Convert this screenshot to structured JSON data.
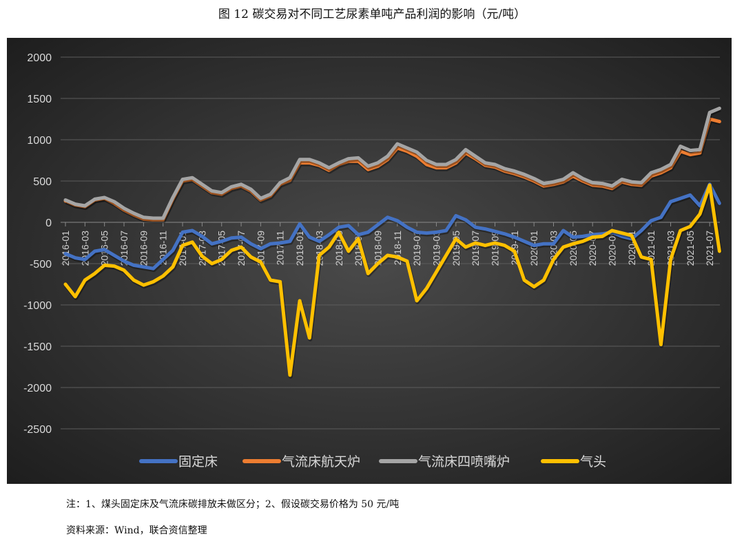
{
  "title": "图 12  碳交易对不同工艺尿素单吨产品利润的影响（元/吨）",
  "notes": [
    "注：1、煤头固定床及气流床碳排放未做区分；2、假设碳交易价格为 50 元/吨",
    "资料来源：Wind，联合资信整理"
  ],
  "chart_data": {
    "type": "line",
    "title": "",
    "xlabel": "",
    "ylabel": "",
    "ylim": [
      -2500,
      2000
    ],
    "yticks": [
      2000,
      1500,
      1000,
      500,
      0,
      -500,
      -1000,
      -1500,
      -2000,
      -2500
    ],
    "grid": true,
    "legend_position": "bottom",
    "xtick_labels": [
      "2016-01",
      "2016-03",
      "2016-05",
      "2016-07",
      "2016-09",
      "2016-11",
      "2017-01",
      "2017-03",
      "2017-05",
      "2017-07",
      "2017-09",
      "2017-11",
      "2018-01",
      "2018-03",
      "2018-05",
      "2018-07",
      "2018-09",
      "2018-11",
      "2019-01",
      "2019-03",
      "2019-05",
      "2019-07",
      "2019-09",
      "2019-11",
      "2020-01",
      "2020-03",
      "2020-05",
      "2020-07",
      "2020-09",
      "2020-11",
      "2021-01",
      "2021-03",
      "2021-05",
      "2021-07"
    ],
    "x_start": "2016-01",
    "x_step": "1 month",
    "series": [
      {
        "name": "固定床",
        "color": "#4472C4",
        "values": [
          -380,
          -430,
          -450,
          -350,
          -330,
          -400,
          -470,
          -520,
          -540,
          -560,
          -450,
          -340,
          -120,
          -100,
          -170,
          -260,
          -230,
          -190,
          -180,
          -260,
          -320,
          -260,
          -250,
          -230,
          -20,
          -180,
          -230,
          -150,
          -60,
          -40,
          -150,
          -120,
          -30,
          60,
          20,
          -60,
          -120,
          -130,
          -120,
          -100,
          80,
          30,
          -60,
          -80,
          -110,
          -140,
          -180,
          -230,
          -280,
          -260,
          -260,
          -100,
          -180,
          -170,
          -150,
          -140,
          -120,
          -170,
          -200,
          -100,
          20,
          60,
          250,
          290,
          330,
          200,
          460,
          230
        ]
      },
      {
        "name": "气流床航天炉",
        "color": "#ED7D31",
        "values": [
          260,
          210,
          190,
          270,
          290,
          230,
          150,
          90,
          40,
          30,
          30,
          280,
          500,
          520,
          440,
          360,
          340,
          410,
          440,
          380,
          270,
          320,
          460,
          510,
          720,
          720,
          690,
          630,
          700,
          740,
          740,
          640,
          680,
          760,
          900,
          860,
          800,
          700,
          660,
          660,
          720,
          840,
          770,
          690,
          670,
          620,
          590,
          550,
          500,
          440,
          460,
          490,
          560,
          500,
          450,
          440,
          410,
          490,
          460,
          450,
          560,
          600,
          660,
          860,
          820,
          840,
          1250,
          1220
        ]
      },
      {
        "name": "气流床四喷嘴炉",
        "color": "#A5A5A5",
        "values": [
          270,
          220,
          200,
          280,
          300,
          250,
          170,
          110,
          60,
          50,
          50,
          300,
          520,
          540,
          460,
          380,
          360,
          430,
          460,
          400,
          290,
          340,
          480,
          540,
          760,
          760,
          720,
          660,
          720,
          770,
          780,
          680,
          720,
          800,
          950,
          900,
          850,
          750,
          700,
          700,
          760,
          880,
          800,
          720,
          700,
          650,
          620,
          580,
          530,
          470,
          490,
          520,
          600,
          530,
          480,
          470,
          440,
          520,
          490,
          480,
          600,
          640,
          700,
          920,
          870,
          880,
          1330,
          1380
        ]
      },
      {
        "name": "气头",
        "color": "#FFC000",
        "values": [
          -750,
          -900,
          -700,
          -620,
          -520,
          -530,
          -580,
          -700,
          -760,
          -720,
          -650,
          -540,
          -280,
          -240,
          -410,
          -500,
          -450,
          -340,
          -300,
          -420,
          -480,
          -700,
          -720,
          -1850,
          -950,
          -1400,
          -400,
          -300,
          -120,
          -350,
          -200,
          -620,
          -500,
          -400,
          -420,
          -470,
          -950,
          -800,
          -600,
          -400,
          -200,
          -300,
          -250,
          -280,
          -250,
          -280,
          -350,
          -700,
          -780,
          -700,
          -450,
          -300,
          -260,
          -230,
          -180,
          -170,
          -100,
          -130,
          -160,
          -420,
          -450,
          -1480,
          -450,
          -100,
          -50,
          100,
          450,
          -350
        ]
      }
    ]
  }
}
